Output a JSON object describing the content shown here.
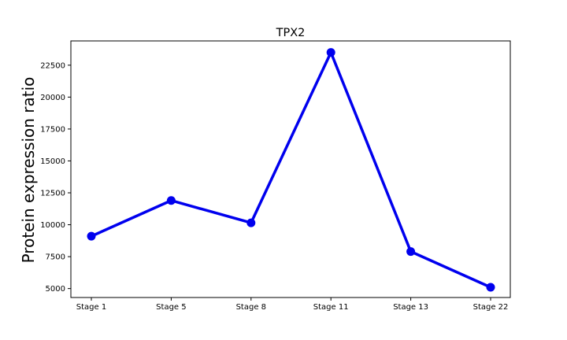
{
  "chart_data": {
    "type": "line",
    "title": "TPX2",
    "xlabel": "",
    "ylabel": "Protein expression ratio",
    "categories": [
      "Stage 1",
      "Stage 5",
      "Stage 8",
      "Stage 11",
      "Stage 13",
      "Stage 22"
    ],
    "series": [
      {
        "values": [
          9100,
          11900,
          10150,
          23500,
          7900,
          5100
        ],
        "color": "#0000ee"
      }
    ],
    "ylim": [
      4300,
      24400
    ],
    "yticks": [
      5000,
      7500,
      10000,
      12500,
      15000,
      17500,
      20000,
      22500
    ],
    "ytick_labels": [
      "5000",
      "7500",
      "10000",
      "12500",
      "15000",
      "17500",
      "20000",
      "22500"
    ],
    "grid": false,
    "legend": "none"
  }
}
